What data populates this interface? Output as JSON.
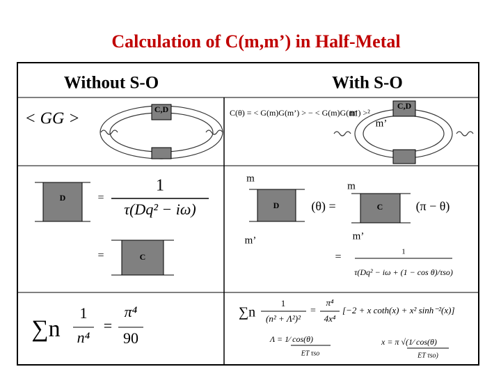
{
  "title": "Calculation of C(m,m’) in Half-Metal",
  "headers": [
    "Without S-O",
    "With S-O"
  ],
  "row1": {
    "left_formula": "< GG >",
    "left_diagram_label": "C,D",
    "right_formula": "C(θ) = < G(m)G(m’) > − < G(m)G(m’) >²",
    "right_m": "m",
    "right_m_prime": "m’",
    "right_diagram_label": "C,D"
  },
  "row2": {
    "left_box_d": "D",
    "left_equals_1": "=",
    "left_fraction_numerator": "1",
    "left_fraction_denominator": "τ(Dq² − iω)",
    "left_equals_2": "=",
    "left_box_c": "C",
    "right_m_1": "m",
    "right_box_d": "D",
    "right_theta": "(θ) =",
    "right_m_prime_1": "m’",
    "right_m_2": "m",
    "right_box_c": "C",
    "right_pi_minus_theta": "(π − θ)",
    "right_m_prime_2": "m’",
    "right_equals": "=",
    "right_fraction_numerator": "1",
    "right_fraction_denominator": "τ(Dq² − iω + (1 − cos θ)/τso)"
  },
  "row3": {
    "left_sum": "∑n",
    "left_numerator": "1",
    "left_denominator": "n⁴",
    "left_equals": "=",
    "left_rhs_numerator": "π⁴",
    "left_rhs_denominator": "90",
    "right_sum": "∑n",
    "right_numerator": "1",
    "right_denominator": "(n² + Λ²)²",
    "right_equals": "=",
    "right_rhs_numerator": "π⁴",
    "right_rhs_denominator": "4x⁴",
    "right_bracket": "[−2 + x coth(x) + x² sinh⁻²(x)]",
    "lambda_def": "Λ = 1⁄ cos(θ)",
    "lambda_denominator": "ET τso",
    "x_def": "x = π √(1⁄ cos(θ)",
    "x_denominator": "ET τso)"
  }
}
